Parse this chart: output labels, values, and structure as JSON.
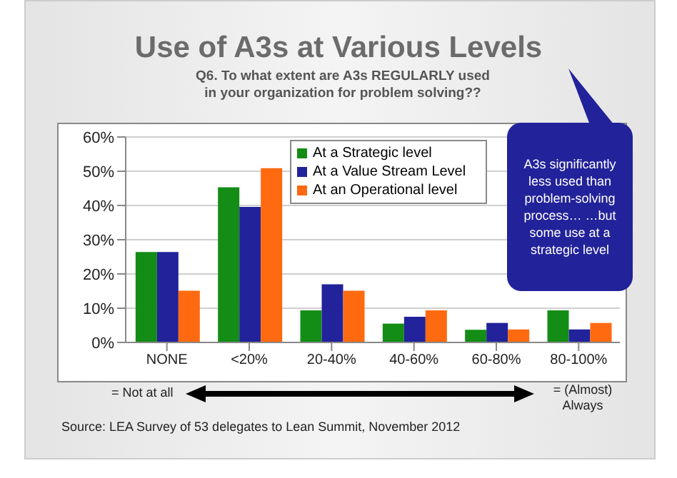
{
  "chart_data": {
    "type": "bar",
    "title": "Use of A3s at Various Levels",
    "subtitle": "Q6. To what extent are A3s REGULARLY used\nin your organization for problem solving??",
    "categories": [
      "NONE",
      "<20%",
      "20-40%",
      "40-60%",
      "60-80%",
      "80-100%"
    ],
    "series": [
      {
        "name": "At a Strategic level",
        "color": "#138d16",
        "values": [
          26.4,
          45.3,
          9.4,
          5.5,
          3.7,
          9.4
        ]
      },
      {
        "name": "At a Value Stream Level",
        "color": "#22229a",
        "values": [
          26.4,
          39.6,
          17,
          7.5,
          5.7,
          3.8
        ]
      },
      {
        "name": "At an Operational level",
        "color": "#ff6a10",
        "values": [
          15.1,
          50.9,
          15.1,
          9.4,
          3.8,
          5.7
        ]
      }
    ],
    "ylim": [
      0,
      60
    ],
    "yticks": [
      {
        "value": 0,
        "label": "0%"
      },
      {
        "value": 10,
        "label": "10%"
      },
      {
        "value": 20,
        "label": "20%"
      },
      {
        "value": 30,
        "label": "30%"
      },
      {
        "value": 40,
        "label": "40%"
      },
      {
        "value": 50,
        "label": "50%"
      },
      {
        "value": 60,
        "label": "60%"
      }
    ],
    "grid": "y",
    "legend": "top right",
    "annotations": [
      "A3s significantly less used than problem-solving process… …but some use at a strategic level",
      "= Not at all",
      "= (Almost) Always",
      "Source: LEA Survey of 53 delegates to Lean Summit, November 2012"
    ]
  }
}
